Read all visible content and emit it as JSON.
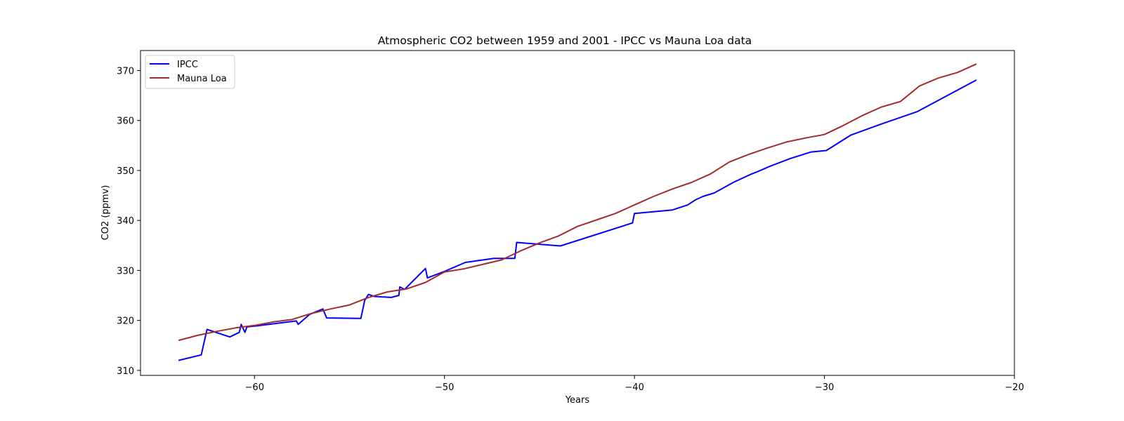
{
  "chart_data": {
    "type": "line",
    "title": "Atmospheric CO2 between 1959 and 2001 - IPCC vs Mauna Loa data",
    "xlabel": "Years",
    "ylabel": "CO2 (ppmv)",
    "xlim": [
      -66,
      -20
    ],
    "ylim": [
      309,
      374
    ],
    "xticks": [
      -60,
      -50,
      -40,
      -30,
      -20
    ],
    "yticks": [
      310,
      320,
      330,
      340,
      350,
      360,
      370
    ],
    "grid": false,
    "legend_position": "top-left",
    "series": [
      {
        "name": "IPCC",
        "color": "#0000ff",
        "points": [
          [
            -64,
            312.0
          ],
          [
            -62.8,
            313.1
          ],
          [
            -62.5,
            318.2
          ],
          [
            -61.3,
            316.7
          ],
          [
            -60.8,
            317.6
          ],
          [
            -60.7,
            319.2
          ],
          [
            -60.5,
            317.6
          ],
          [
            -60.4,
            318.7
          ],
          [
            -59.9,
            318.9
          ],
          [
            -57.8,
            319.9
          ],
          [
            -57.7,
            319.2
          ],
          [
            -57.1,
            321.2
          ],
          [
            -56.4,
            322.3
          ],
          [
            -56.2,
            320.5
          ],
          [
            -54.4,
            320.4
          ],
          [
            -54.2,
            324.0
          ],
          [
            -54.0,
            325.2
          ],
          [
            -53.7,
            324.8
          ],
          [
            -52.8,
            324.6
          ],
          [
            -52.4,
            325.0
          ],
          [
            -52.35,
            326.7
          ],
          [
            -52.1,
            326.2
          ],
          [
            -51.0,
            330.4
          ],
          [
            -50.9,
            328.5
          ],
          [
            -50.0,
            329.8
          ],
          [
            -48.9,
            331.6
          ],
          [
            -47.4,
            332.4
          ],
          [
            -46.6,
            332.4
          ],
          [
            -46.3,
            332.4
          ],
          [
            -46.2,
            335.6
          ],
          [
            -43.9,
            334.9
          ],
          [
            -40.1,
            339.5
          ],
          [
            -40.0,
            341.4
          ],
          [
            -38.0,
            342.1
          ],
          [
            -37.2,
            343.1
          ],
          [
            -36.8,
            344.1
          ],
          [
            -36.4,
            344.8
          ],
          [
            -35.8,
            345.5
          ],
          [
            -34.8,
            347.6
          ],
          [
            -33.9,
            349.2
          ],
          [
            -33.5,
            349.8
          ],
          [
            -32.9,
            350.8
          ],
          [
            -31.8,
            352.4
          ],
          [
            -30.7,
            353.7
          ],
          [
            -29.9,
            354.0
          ],
          [
            -28.6,
            357.1
          ],
          [
            -27.0,
            359.3
          ],
          [
            -25.1,
            361.8
          ],
          [
            -22.0,
            368.1
          ]
        ]
      },
      {
        "name": "Mauna Loa",
        "color": "#a52a2a",
        "points": [
          [
            -64,
            316.0
          ],
          [
            -63,
            317.0
          ],
          [
            -62,
            317.8
          ],
          [
            -61,
            318.5
          ],
          [
            -60,
            319.0
          ],
          [
            -59,
            319.7
          ],
          [
            -58,
            320.2
          ],
          [
            -57,
            321.4
          ],
          [
            -56,
            322.3
          ],
          [
            -55,
            323.1
          ],
          [
            -54,
            324.6
          ],
          [
            -53,
            325.7
          ],
          [
            -52,
            326.3
          ],
          [
            -51,
            327.6
          ],
          [
            -50,
            329.7
          ],
          [
            -49,
            330.3
          ],
          [
            -48,
            331.2
          ],
          [
            -47,
            332.1
          ],
          [
            -46,
            333.9
          ],
          [
            -45,
            335.5
          ],
          [
            -44,
            336.9
          ],
          [
            -43,
            338.8
          ],
          [
            -42,
            340.1
          ],
          [
            -41,
            341.4
          ],
          [
            -40,
            343.1
          ],
          [
            -39,
            344.8
          ],
          [
            -38,
            346.3
          ],
          [
            -37,
            347.6
          ],
          [
            -36,
            349.3
          ],
          [
            -35,
            351.7
          ],
          [
            -34,
            353.2
          ],
          [
            -33,
            354.5
          ],
          [
            -32,
            355.7
          ],
          [
            -31,
            356.5
          ],
          [
            -30,
            357.2
          ],
          [
            -29,
            359.0
          ],
          [
            -28,
            361.0
          ],
          [
            -27,
            362.7
          ],
          [
            -26,
            363.8
          ],
          [
            -25,
            366.9
          ],
          [
            -24,
            368.5
          ],
          [
            -23,
            369.6
          ],
          [
            -22,
            371.3
          ]
        ]
      }
    ]
  }
}
